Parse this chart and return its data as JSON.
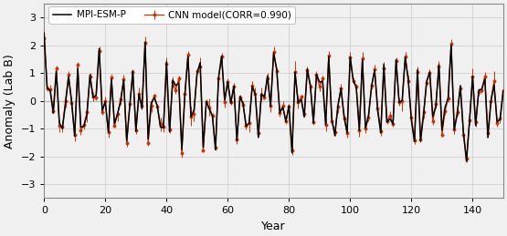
{
  "black_label": "MPI-ESM-P",
  "red_label": "CNN model(CORR=0.990)",
  "ylabel": "Anomaly (Lab B)",
  "xlabel": "Year",
  "xlim": [
    0,
    150
  ],
  "ylim": [
    -3.5,
    3.5
  ],
  "yticks": [
    -3,
    -2,
    -1,
    0,
    1,
    2,
    3
  ],
  "xticks": [
    0,
    20,
    40,
    60,
    80,
    100,
    120,
    140
  ],
  "black_color": "#000000",
  "red_color": "#cc3300",
  "grid_color": "#d0d0d0",
  "hline_color": "#555555",
  "bg_color": "#f0f0f0"
}
